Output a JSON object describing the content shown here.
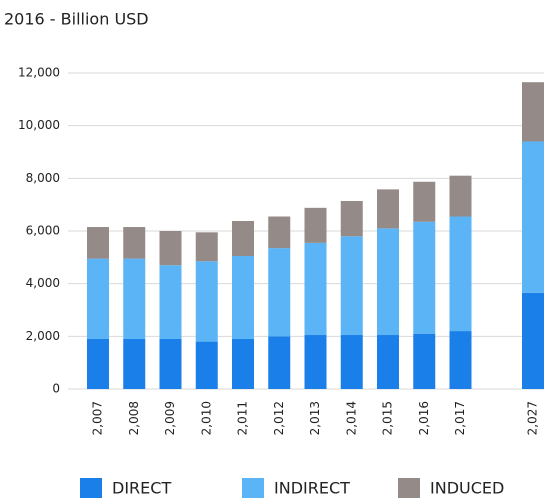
{
  "chart_data": {
    "type": "stacked_bar",
    "title": "2016 - Billion USD",
    "categories": [
      "2,007",
      "2,008",
      "2,009",
      "2,010",
      "2,011",
      "2,012",
      "2,013",
      "2,014",
      "2,015",
      "2,016",
      "2,017",
      null,
      "2,027"
    ],
    "series": [
      {
        "name": "DIRECT",
        "color": "#1a7fe8",
        "values": [
          1900,
          1900,
          1900,
          1800,
          1900,
          2000,
          2050,
          2050,
          2050,
          2100,
          2200,
          null,
          3650
        ]
      },
      {
        "name": "INDIRECT",
        "color": "#5ab4f5",
        "values": [
          3050,
          3050,
          2800,
          3050,
          3150,
          3350,
          3500,
          3750,
          4050,
          4250,
          4350,
          null,
          5750
        ]
      },
      {
        "name": "INDUCED",
        "color": "#948a87",
        "values": [
          1200,
          1200,
          1300,
          1100,
          1330,
          1200,
          1330,
          1340,
          1480,
          1520,
          1550,
          null,
          2250
        ]
      }
    ],
    "ylim": [
      0,
      12000
    ],
    "yticks": [
      0,
      {
        "value": 2000,
        "label": "2,000"
      },
      {
        "value": 4000,
        "label": "4,000"
      },
      {
        "value": 6000,
        "label": "6,000"
      },
      {
        "value": 8000,
        "label": "8,000"
      },
      {
        "value": 10000,
        "label": "10,000"
      },
      {
        "value": 12000,
        "label": "12,000"
      }
    ],
    "grid": true,
    "legend": "bottom"
  }
}
